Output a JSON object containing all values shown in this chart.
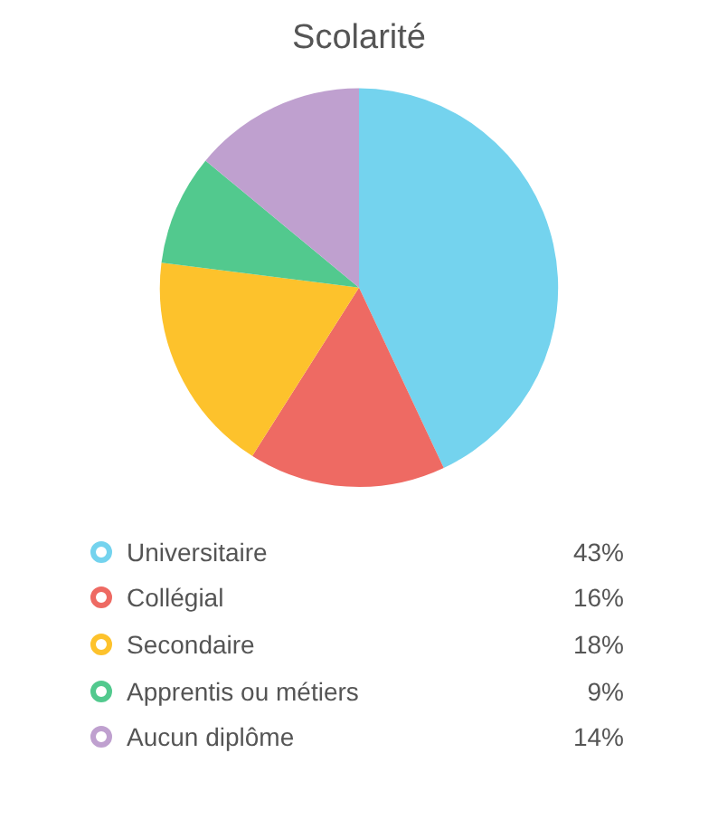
{
  "chart_data": {
    "type": "pie",
    "title": "Scolarité",
    "categories": [
      "Universitaire",
      "Collégial",
      "Secondaire",
      "Apprentis ou métiers",
      "Aucun diplôme"
    ],
    "values": [
      43,
      16,
      18,
      9,
      14
    ],
    "value_labels": [
      "43%",
      "16%",
      "18%",
      "9%",
      "14%"
    ],
    "colors": [
      "#74d3ee",
      "#ee6a63",
      "#fdc22c",
      "#52c98e",
      "#bfa0cf"
    ],
    "legend": "bottom"
  }
}
